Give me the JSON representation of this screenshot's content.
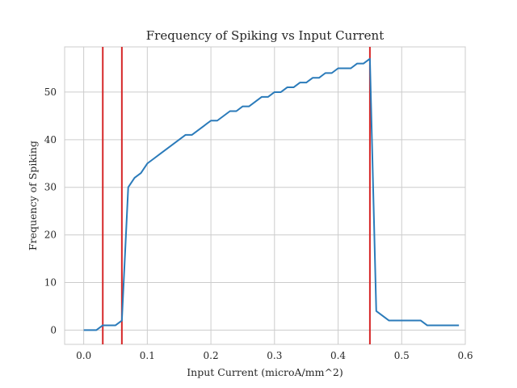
{
  "chart_data": {
    "type": "line",
    "title": "Frequency of Spiking vs Input Current",
    "xlabel": "Input Current (microA/mm^2)",
    "ylabel": "Frequency of Spiking",
    "xlim": [
      -0.03,
      0.6
    ],
    "ylim": [
      -3,
      59.5
    ],
    "xticks": [
      0.0,
      0.1,
      0.2,
      0.3,
      0.4,
      0.5,
      0.6
    ],
    "xtick_labels": [
      "0.0",
      "0.1",
      "0.2",
      "0.3",
      "0.4",
      "0.5",
      "0.6"
    ],
    "yticks": [
      0,
      10,
      20,
      30,
      40,
      50
    ],
    "ytick_labels": [
      "0",
      "10",
      "20",
      "30",
      "40",
      "50"
    ],
    "grid": true,
    "series": [
      {
        "color": "#2b7bba",
        "x": [
          0.0,
          0.01,
          0.02,
          0.03,
          0.04,
          0.05,
          0.06,
          0.07,
          0.08,
          0.09,
          0.1,
          0.11,
          0.12,
          0.13,
          0.14,
          0.15,
          0.16,
          0.17,
          0.18,
          0.19,
          0.2,
          0.21,
          0.22,
          0.23,
          0.24,
          0.25,
          0.26,
          0.27,
          0.28,
          0.29,
          0.3,
          0.31,
          0.32,
          0.33,
          0.34,
          0.35,
          0.36,
          0.37,
          0.38,
          0.39,
          0.4,
          0.41,
          0.42,
          0.43,
          0.44,
          0.45,
          0.46,
          0.47,
          0.48,
          0.49,
          0.5,
          0.51,
          0.52,
          0.53,
          0.54,
          0.55,
          0.56,
          0.57,
          0.58,
          0.59
        ],
        "y": [
          0,
          0,
          0,
          1,
          1,
          1,
          2,
          30,
          32,
          33,
          35,
          36,
          37,
          38,
          39,
          40,
          41,
          41,
          42,
          43,
          44,
          44,
          45,
          46,
          46,
          47,
          47,
          48,
          49,
          49,
          50,
          50,
          51,
          51,
          52,
          52,
          53,
          53,
          54,
          54,
          55,
          55,
          55,
          56,
          56,
          57,
          4,
          3,
          2,
          2,
          2,
          2,
          2,
          2,
          1,
          1,
          1,
          1,
          1,
          1
        ]
      }
    ],
    "vlines": [
      {
        "x": 0.03,
        "color": "#d62728"
      },
      {
        "x": 0.06,
        "color": "#d62728"
      },
      {
        "x": 0.45,
        "color": "#d62728"
      }
    ]
  }
}
